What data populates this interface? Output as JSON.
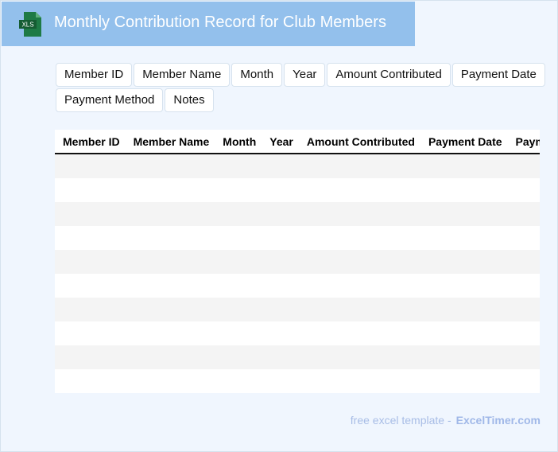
{
  "header": {
    "title": "Monthly Contribution Record for Club Members",
    "icon": "xls-file-icon",
    "icon_text": "XLS",
    "color": "#93c0ec"
  },
  "fields": [
    "Member ID",
    "Member Name",
    "Month",
    "Year",
    "Amount Contributed",
    "Payment Date",
    "Payment Method",
    "Notes"
  ],
  "table": {
    "columns": [
      "Member ID",
      "Member Name",
      "Month",
      "Year",
      "Amount Contributed",
      "Payment Date",
      "Payment Method"
    ],
    "row_count": 10
  },
  "footer": {
    "text": "free excel template -",
    "brand": "ExcelTimer.com"
  }
}
